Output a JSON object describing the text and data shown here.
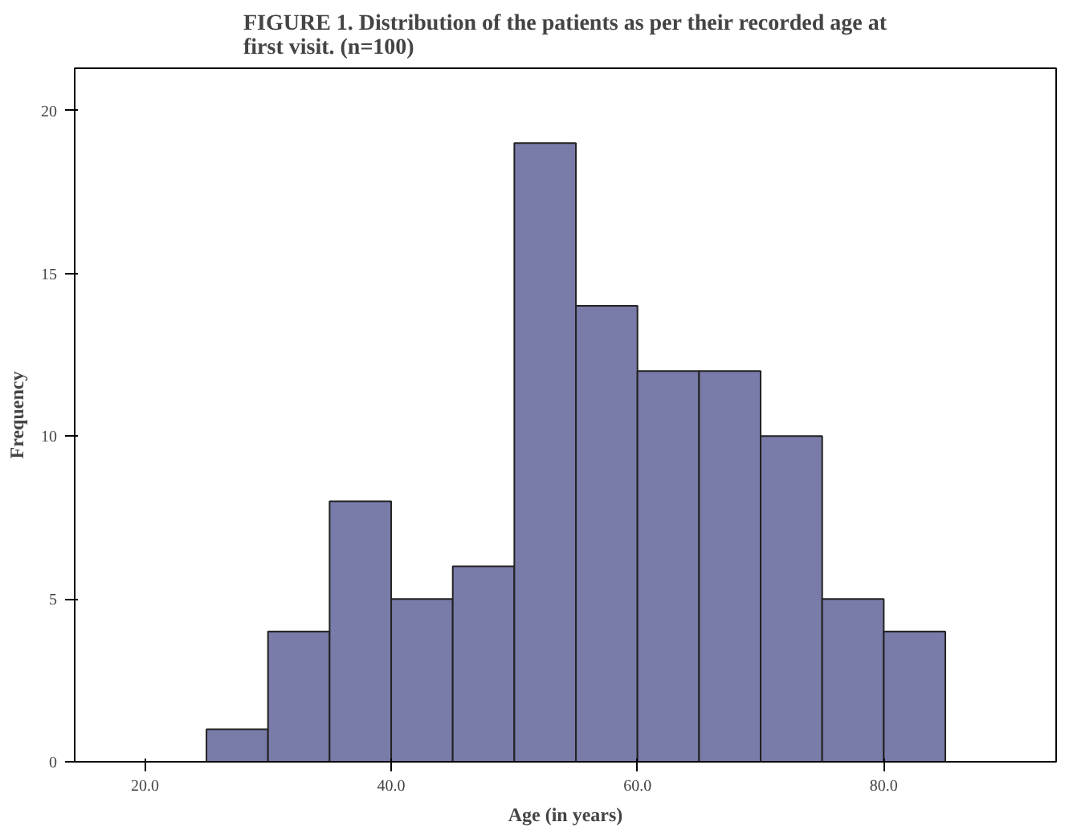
{
  "chart_data": {
    "type": "histogram",
    "title": "FIGURE 1. Distribution of the patients as per their recorded age at first visit. (n=100)",
    "xlabel": "Age (in years)",
    "ylabel": "Frequency",
    "bins": [
      25,
      30,
      35,
      40,
      45,
      50,
      55,
      60,
      65,
      70,
      75,
      80,
      85
    ],
    "values": [
      1,
      4,
      8,
      5,
      6,
      19,
      14,
      12,
      12,
      10,
      5,
      4
    ],
    "color": "#797ba9",
    "xlim": [
      14.3,
      94
    ],
    "xticks": [
      {
        "value": 20,
        "label": "20.0"
      },
      {
        "value": 40,
        "label": "40.0"
      },
      {
        "value": 60,
        "label": "60.0"
      },
      {
        "value": 80,
        "label": "80.0"
      }
    ],
    "ylim": [
      0,
      21.3
    ],
    "yticks": [
      0,
      5,
      10,
      15,
      20
    ],
    "grid": false
  }
}
